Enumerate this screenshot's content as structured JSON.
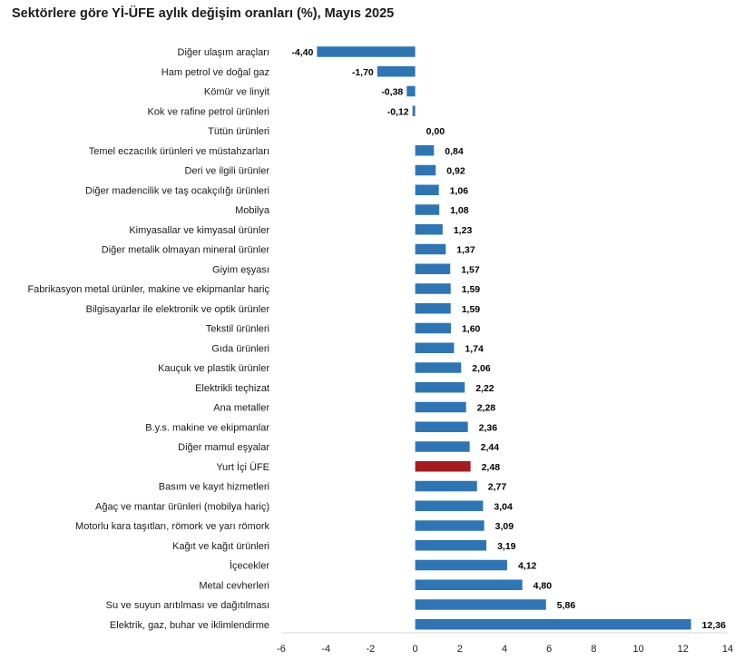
{
  "chart_data": {
    "type": "bar",
    "orientation": "horizontal",
    "title": "Sektörlere göre Yİ-ÜFE aylık değişim oranları (%), Mayıs 2025",
    "categories": [
      "Diğer ulaşım araçları",
      "Ham petrol ve doğal gaz",
      "Kömür ve linyit",
      "Kok ve rafine petrol ürünleri",
      "Tütün ürünleri",
      "Temel eczacılık ürünleri ve müstahzarları",
      "Deri ve ilgili ürünler",
      "Diğer madencilik ve taş ocakçılığı ürünleri",
      "Mobilya",
      "Kimyasallar ve kimyasal ürünler",
      "Diğer metalik olmayan mineral ürünler",
      "Giyim eşyası",
      "Fabrikasyon metal ürünler, makine ve ekipmanlar hariç",
      "Bilgisayarlar ile elektronik ve optik ürünler",
      "Tekstil ürünleri",
      "Gıda ürünleri",
      "Kauçuk ve plastik ürünler",
      "Elektrikli teçhizat",
      "Ana metaller",
      "B.y.s. makine ve ekipmanlar",
      "Diğer mamul eşyalar",
      "Yurt İçi ÜFE",
      "Basım ve kayıt hizmetleri",
      "Ağaç ve mantar ürünleri (mobilya hariç)",
      "Motorlu kara taşıtları, römork ve yarı römork",
      "Kağıt ve kağıt ürünleri",
      "İçecekler",
      "Metal cevherleri",
      "Su ve suyun arıtılması ve dağıtılması",
      "Elektrik, gaz, buhar ve iklimlendirme"
    ],
    "values": [
      -4.4,
      -1.7,
      -0.38,
      -0.12,
      0.0,
      0.84,
      0.92,
      1.06,
      1.08,
      1.23,
      1.37,
      1.57,
      1.59,
      1.59,
      1.6,
      1.74,
      2.06,
      2.22,
      2.28,
      2.36,
      2.44,
      2.48,
      2.77,
      3.04,
      3.09,
      3.19,
      4.12,
      4.8,
      5.86,
      12.36
    ],
    "value_labels": [
      "-4,40",
      "-1,70",
      "-0,38",
      "-0,12",
      "0,00",
      "0,84",
      "0,92",
      "1,06",
      "1,08",
      "1,23",
      "1,37",
      "1,57",
      "1,59",
      "1,59",
      "1,60",
      "1,74",
      "2,06",
      "2,22",
      "2,28",
      "2,36",
      "2,44",
      "2,48",
      "2,77",
      "3,04",
      "3,09",
      "3,19",
      "4,12",
      "4,80",
      "5,86",
      "12,36"
    ],
    "highlight_category": "Yurt İçi ÜFE",
    "xlim": [
      -6,
      14
    ],
    "xticks": [
      -6,
      -4,
      -2,
      0,
      2,
      4,
      6,
      8,
      10,
      12,
      14
    ],
    "bar_color": "#2e75b6",
    "highlight_color": "#a61b1f",
    "grid": false,
    "legend": "none"
  }
}
